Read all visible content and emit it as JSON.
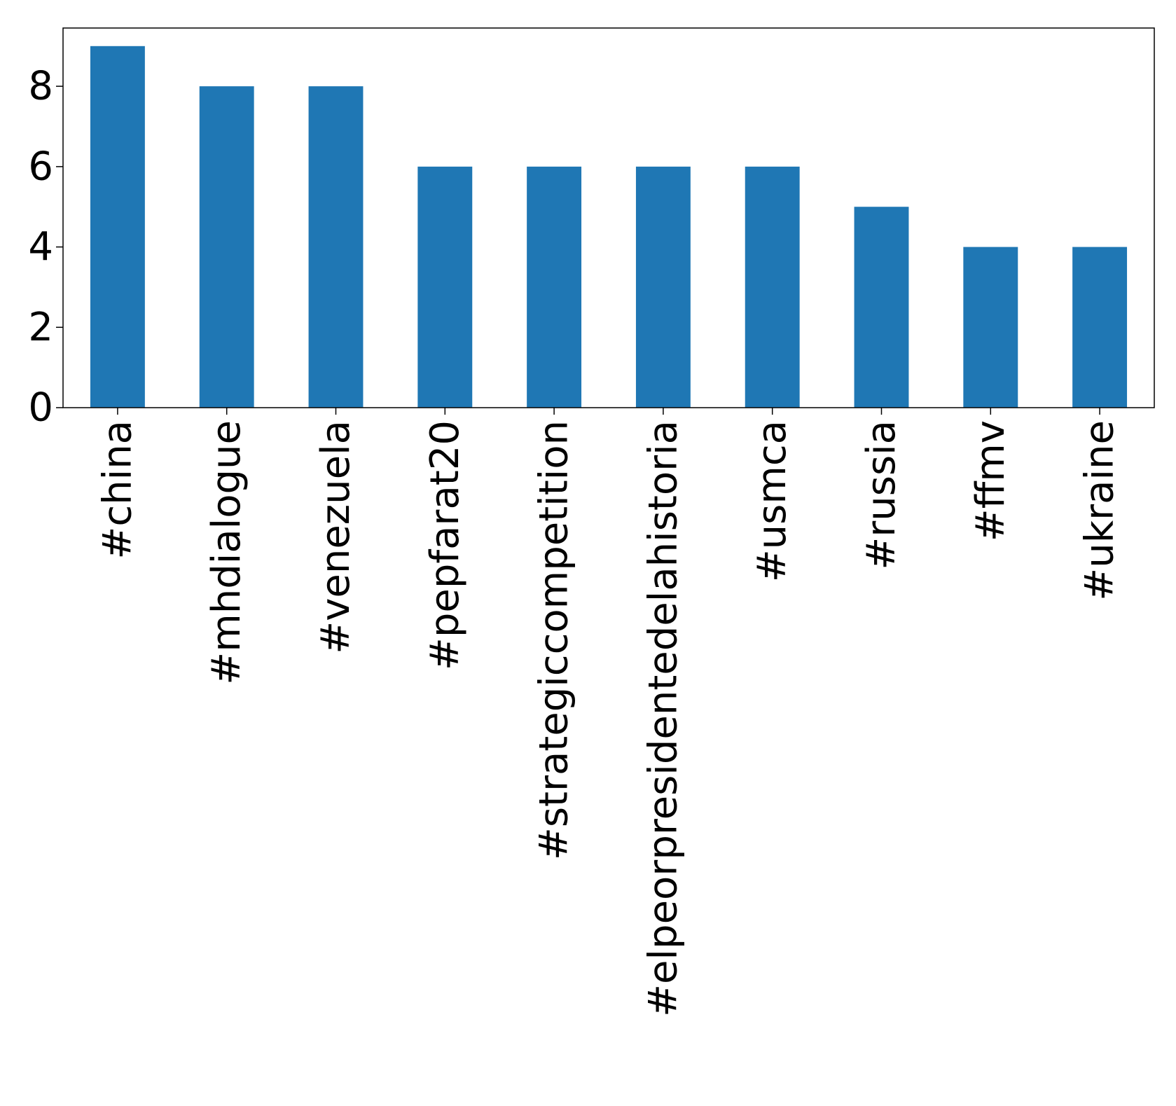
{
  "chart_data": {
    "type": "bar",
    "title": "",
    "xlabel": "",
    "ylabel": "",
    "categories": [
      "#china",
      "#mhdialogue",
      "#venezuela",
      "#pepfarat20",
      "#strategiccompetition",
      "#elpeorpresidentedelahistoria",
      "#usmca",
      "#russia",
      "#ffmv",
      "#ukraine"
    ],
    "values": [
      9,
      8,
      8,
      6,
      6,
      6,
      6,
      5,
      4,
      4
    ],
    "ylim": [
      0,
      9.45
    ],
    "yticks": [
      0,
      2,
      4,
      6,
      8
    ],
    "grid": false,
    "legend": "none",
    "bar_color": "#1f77b4"
  }
}
